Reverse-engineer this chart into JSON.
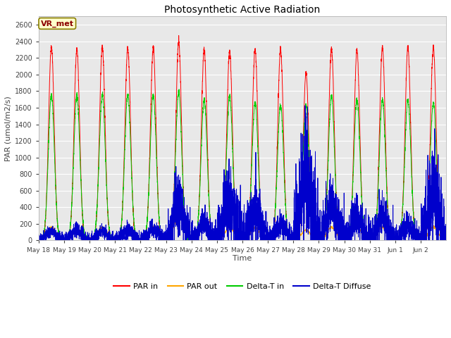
{
  "title": "Photosynthetic Active Radiation",
  "ylabel": "PAR (umol/m2/s)",
  "xlabel": "Time",
  "ylim": [
    0,
    2700
  ],
  "yticks": [
    0,
    200,
    400,
    600,
    800,
    1000,
    1200,
    1400,
    1600,
    1800,
    2000,
    2200,
    2400,
    2600
  ],
  "fig_bg_color": "#f0f0f0",
  "plot_bg_color": "#e8e8e8",
  "colors": {
    "PAR_in": "#ff0000",
    "PAR_out": "#ffa500",
    "Delta_T_in": "#00cc00",
    "Delta_T_Diffuse": "#0000cc"
  },
  "legend_labels": [
    "PAR in",
    "PAR out",
    "Delta-T in",
    "Delta-T Diffuse"
  ],
  "watermark_text": "VR_met",
  "n_days": 16,
  "points_per_day": 288,
  "PAR_in_peaks": [
    2350,
    2310,
    2330,
    2320,
    2320,
    2400,
    2300,
    2280,
    2300,
    2310,
    2020,
    2310,
    2300,
    2330,
    2330,
    2330
  ],
  "PAR_out_peaks": [
    160,
    155,
    160,
    155,
    160,
    310,
    160,
    155,
    155,
    160,
    125,
    160,
    160,
    160,
    160,
    160
  ],
  "Delta_T_in_peaks": [
    1750,
    1750,
    1760,
    1760,
    1760,
    1800,
    1700,
    1750,
    1670,
    1640,
    1630,
    1750,
    1700,
    1700,
    1700,
    1660
  ],
  "Delta_T_Diffuse_peaks": [
    100,
    120,
    110,
    125,
    140,
    490,
    220,
    550,
    420,
    200,
    870,
    430,
    310,
    310,
    200,
    600
  ],
  "tick_labels": [
    "May 18",
    "May 19",
    "May 20",
    "May 21",
    "May 22",
    "May 23",
    "May 24",
    "May 25",
    "May 26",
    "May 27",
    "May 28",
    "May 29",
    "May 30",
    "May 31",
    "Jun 1",
    "Jun 2"
  ]
}
